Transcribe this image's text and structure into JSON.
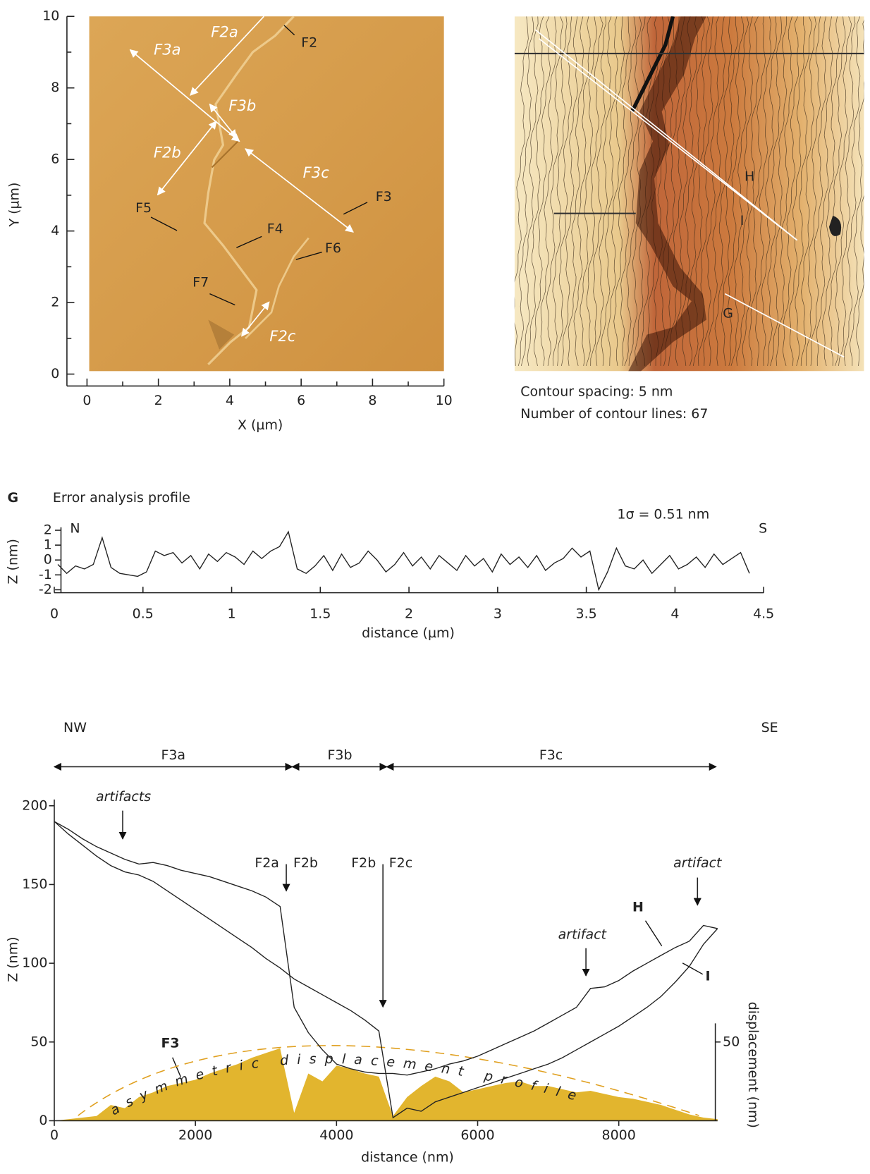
{
  "chart_data": [
    {
      "type": "image",
      "xlabel": "X (µm)",
      "ylabel": "Y (µm)",
      "xlim": [
        0,
        10
      ],
      "ylim": [
        0,
        10
      ],
      "xticks": [
        0,
        2,
        4,
        6,
        8,
        10
      ],
      "yticks": [
        0,
        2,
        4,
        6,
        8,
        10
      ],
      "annotations": [
        "F2a",
        "F2",
        "F3a",
        "F3b",
        "F2b",
        "F3c",
        "F3",
        "F5",
        "F4",
        "F6",
        "F7",
        "F2c"
      ]
    },
    {
      "type": "image",
      "annotations": [
        "H",
        "I",
        "G"
      ],
      "caption": [
        "Contour spacing: 5 nm",
        "Number of contour lines: 67"
      ]
    },
    {
      "type": "line",
      "label": "G",
      "title": "Error analysis profile",
      "annotations": [
        "1σ = 0.51 nm",
        "N",
        "S"
      ],
      "xlabel": "distance (µm)",
      "ylabel": "Z (nm)",
      "color": "#222222",
      "xlim": [
        0,
        4
      ],
      "ylim": [
        -2.2,
        2.2
      ],
      "xticks": [
        0,
        0.5,
        1,
        1.5,
        2,
        {
          "value": 2.5,
          "label": "3"
        },
        {
          "value": 3,
          "label": "3.5"
        },
        {
          "value": 3.5,
          "label": "4"
        },
        {
          "value": 4,
          "label": "4.5"
        }
      ],
      "yticks": [
        2,
        1,
        0,
        -1,
        -2
      ],
      "x": [
        0.02,
        0.07,
        0.12,
        0.17,
        0.22,
        0.27,
        0.32,
        0.37,
        0.42,
        0.47,
        0.52,
        0.57,
        0.62,
        0.67,
        0.72,
        0.77,
        0.82,
        0.87,
        0.92,
        0.97,
        1.02,
        1.07,
        1.12,
        1.17,
        1.22,
        1.27,
        1.32,
        1.37,
        1.42,
        1.47,
        1.52,
        1.57,
        1.62,
        1.67,
        1.72,
        1.77,
        1.82,
        1.87,
        1.92,
        1.97,
        2.02,
        2.07,
        2.12,
        2.17,
        2.22,
        2.27,
        2.32,
        2.37,
        2.42,
        2.47,
        2.52,
        2.57,
        2.62,
        2.67,
        2.72,
        2.77,
        2.82,
        2.87,
        2.92,
        2.97,
        3.02,
        3.07,
        3.12,
        3.17,
        3.22,
        3.27,
        3.32,
        3.37,
        3.42,
        3.47,
        3.52,
        3.57,
        3.62,
        3.67,
        3.72,
        3.77,
        3.82,
        3.87,
        3.92
      ],
      "values": [
        -0.3,
        -0.9,
        -0.4,
        -0.6,
        -0.3,
        1.5,
        -0.5,
        -0.9,
        -1.0,
        -1.1,
        -0.8,
        0.6,
        0.3,
        0.5,
        -0.2,
        0.3,
        -0.6,
        0.4,
        -0.1,
        0.5,
        0.2,
        -0.3,
        0.6,
        0.1,
        0.6,
        0.9,
        1.9,
        -0.6,
        -0.9,
        -0.4,
        0.3,
        -0.7,
        0.4,
        -0.5,
        -0.2,
        0.6,
        0.0,
        -0.8,
        -0.3,
        0.5,
        -0.4,
        0.2,
        -0.6,
        0.3,
        -0.2,
        -0.7,
        0.3,
        -0.4,
        0.1,
        -0.8,
        0.4,
        -0.3,
        0.2,
        -0.5,
        0.3,
        -0.7,
        -0.2,
        0.1,
        0.8,
        0.2,
        0.6,
        -2.0,
        -0.8,
        0.8,
        -0.4,
        -0.6,
        0.0,
        -0.9,
        -0.3,
        0.3,
        -0.6,
        -0.3,
        0.2,
        -0.5,
        0.4,
        -0.3,
        0.1,
        0.5,
        -0.9
      ]
    },
    {
      "type": "line",
      "xlabel": "distance (nm)",
      "ylabel": "Z (nm)",
      "y2label": "displacement (nm)",
      "annotations": [
        "NW",
        "SE",
        "F3a",
        "F3b",
        "F3c",
        "artifacts",
        "F2a",
        "F2b",
        "F2b",
        "F2c",
        "artifact",
        "artifact",
        "H",
        "I",
        "F3",
        "asymmetric displacement profile"
      ],
      "xlim": [
        0,
        9400
      ],
      "ylim": [
        0,
        204
      ],
      "y2lim": [
        0,
        204
      ],
      "xticks": [
        0,
        2000,
        4000,
        6000,
        8000
      ],
      "yticks": [
        0,
        50,
        100,
        150,
        200
      ],
      "y2ticks": [
        50
      ],
      "x": [
        0,
        200,
        400,
        600,
        800,
        1000,
        1200,
        1400,
        1600,
        1800,
        2000,
        2200,
        2400,
        2600,
        2800,
        3000,
        3200,
        3400,
        3600,
        3800,
        4000,
        4200,
        4400,
        4600,
        4800,
        5000,
        5200,
        5400,
        5600,
        5800,
        6000,
        6200,
        6400,
        6600,
        6800,
        7000,
        7200,
        7400,
        7600,
        7800,
        8000,
        8200,
        8400,
        8600,
        8800,
        9000,
        9200,
        9400
      ],
      "series": [
        {
          "name": "H",
          "color": "#222222",
          "values": [
            190,
            185,
            179,
            174,
            170,
            166,
            163,
            164,
            162,
            159,
            157,
            155,
            152,
            149,
            146,
            142,
            136,
            72,
            56,
            45,
            36,
            33,
            31,
            30,
            30,
            29,
            31,
            33,
            36,
            38,
            41,
            45,
            49,
            53,
            57,
            62,
            67,
            72,
            84,
            85,
            89,
            95,
            100,
            105,
            110,
            114,
            124,
            122
          ]
        },
        {
          "name": "I",
          "color": "#222222",
          "values": [
            190,
            182,
            175,
            168,
            162,
            158,
            156,
            152,
            146,
            140,
            134,
            128,
            122,
            116,
            110,
            103,
            97,
            90,
            85,
            80,
            75,
            70,
            64,
            57,
            2,
            8,
            6,
            12,
            15,
            18,
            21,
            24,
            27,
            30,
            33,
            36,
            40,
            45,
            50,
            55,
            60,
            66,
            72,
            79,
            88,
            98,
            112,
            122
          ]
        },
        {
          "type": "area",
          "axis": "y2",
          "color": "#e2b52e",
          "values": [
            0,
            1,
            2,
            3,
            10,
            8,
            15,
            18,
            22,
            24,
            26,
            30,
            33,
            36,
            40,
            43,
            46,
            5,
            30,
            25,
            35,
            33,
            30,
            28,
            3,
            15,
            22,
            28,
            25,
            18,
            20,
            22,
            24,
            25,
            22,
            22,
            20,
            18,
            19,
            17,
            15,
            14,
            12,
            10,
            7,
            4,
            2,
            1
          ]
        }
      ]
    }
  ]
}
